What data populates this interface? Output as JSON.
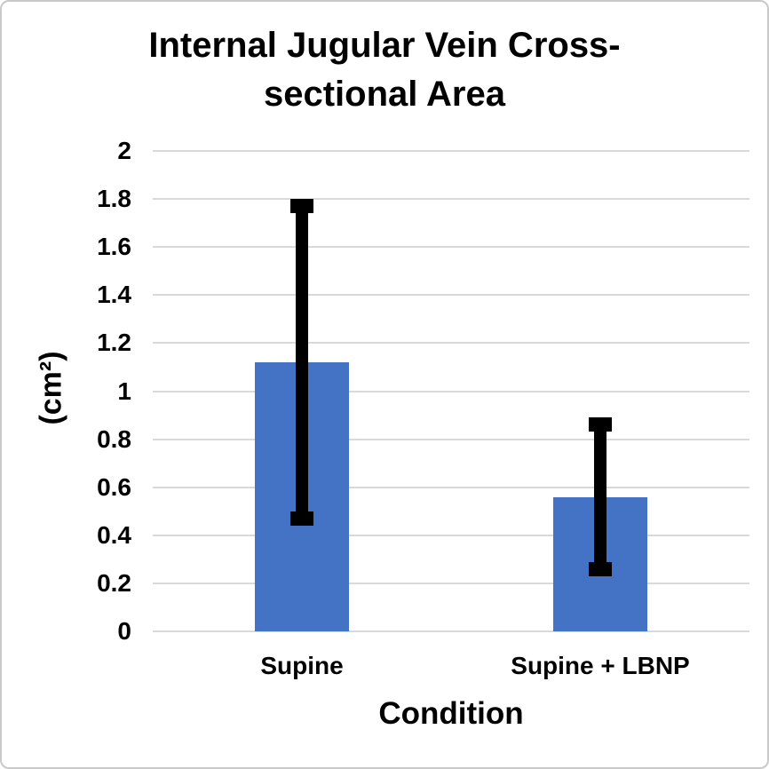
{
  "chart_data": {
    "type": "bar",
    "title": "Internal Jugular Vein Cross-sectional Area",
    "title_lines": [
      "Internal Jugular Vein Cross-",
      "sectional Area"
    ],
    "xlabel": "Condition",
    "ylabel": "(cm²)",
    "categories": [
      "Supine",
      "Supine + LBNP"
    ],
    "values": [
      1.12,
      0.56
    ],
    "error_bars": {
      "upper": [
        1.77,
        0.86
      ],
      "lower": [
        0.47,
        0.26
      ]
    },
    "ylim": [
      0,
      2
    ],
    "ytick_step": 0.2,
    "ytick_labels": [
      "0",
      "0.2",
      "0.4",
      "0.6",
      "0.8",
      "1",
      "1.2",
      "1.4",
      "1.6",
      "1.8",
      "2"
    ],
    "grid": true,
    "legend": "none",
    "colors": {
      "bar": "#4472C4",
      "error_bar": "#000000",
      "gridline": "#D9D9D9",
      "text": "#000000",
      "frame_border": "#C9C9C9"
    }
  }
}
